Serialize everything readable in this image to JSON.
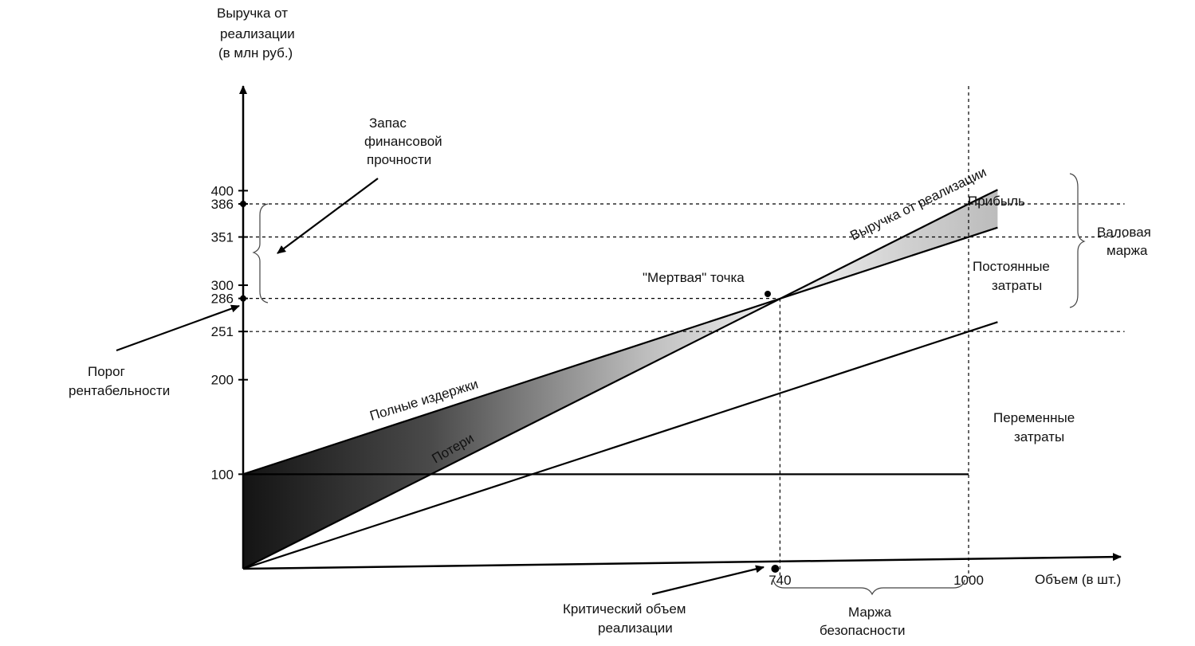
{
  "chart_data": {
    "type": "line",
    "title": "",
    "ylabel": [
      "Выручка от",
      "реализации",
      "(в млн руб.)"
    ],
    "xlabel": "Объем (в шт.)",
    "y_ticks": [
      "400",
      "386",
      "351",
      "300",
      "286",
      "251",
      "200",
      "100"
    ],
    "y_tick_values": [
      400,
      386,
      351,
      300,
      286,
      251,
      200,
      100
    ],
    "x_ticks": [
      "740",
      "1000"
    ],
    "x_tick_values": [
      740,
      1000
    ],
    "ylim": [
      0,
      410
    ],
    "xlim": [
      0,
      1040
    ],
    "series": [
      {
        "name": "Выручка от реализации",
        "x": [
          0,
          1000,
          1040
        ],
        "y": [
          0,
          386,
          401
        ]
      },
      {
        "name": "Полные издержки",
        "x": [
          0,
          1000,
          1040
        ],
        "y": [
          100,
          351,
          361
        ]
      },
      {
        "name": "Переменные затраты",
        "x": [
          0,
          1000,
          1040
        ],
        "y": [
          0,
          251,
          261
        ]
      },
      {
        "name": "Постоянные затраты",
        "x": [
          0,
          1000
        ],
        "y": [
          100,
          100
        ]
      }
    ],
    "annotations": {
      "break_even": "\"Мертвая\" точка",
      "losses": "Потери",
      "profit": "Прибыль",
      "gross_margin": [
        "Валовая",
        "маржа"
      ],
      "fixed_costs": [
        "Постоянные",
        "затраты"
      ],
      "variable_costs": [
        "Переменные",
        "затраты"
      ],
      "financial_strength": [
        "Запас",
        "финансовой",
        "прочности"
      ],
      "profitability_threshold": [
        "Порог",
        "рентабельности"
      ],
      "critical_volume": [
        "Критический объем",
        "реализации"
      ],
      "safety_margin": [
        "Маржа",
        "безопасности"
      ]
    }
  }
}
